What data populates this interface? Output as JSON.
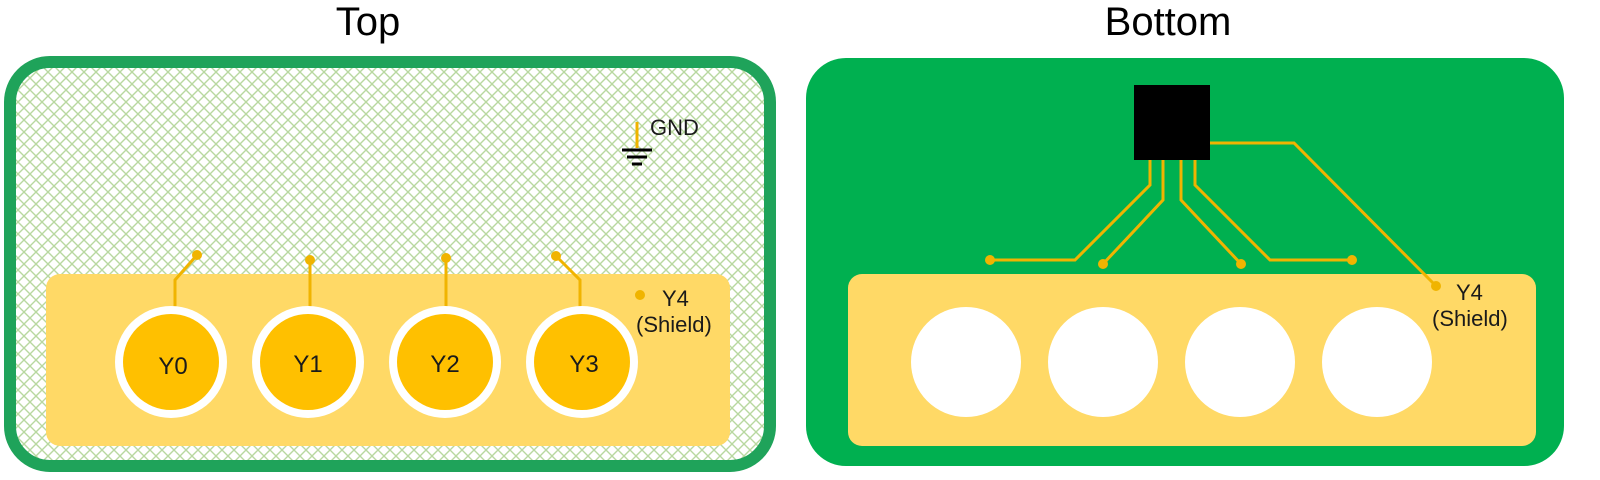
{
  "panels": {
    "top": {
      "title": "Top",
      "gnd_label": "GND",
      "shield_label_line1": "Y4",
      "shield_label_line2": "(Shield)",
      "pads": [
        {
          "label": "Y0"
        },
        {
          "label": "Y1"
        },
        {
          "label": "Y2"
        },
        {
          "label": "Y3"
        }
      ]
    },
    "bottom": {
      "title": "Bottom",
      "shield_label_line1": "Y4",
      "shield_label_line2": "(Shield)",
      "pad_count": 4
    }
  },
  "colors": {
    "board_green": "#00b050",
    "board_border_green": "#1fa35a",
    "hatch_green": "#b8d8a0",
    "shield_yellow": "#ffd966",
    "pad_orange": "#ffc000",
    "trace_orange": "#f0b400",
    "chip_black": "#000000"
  },
  "icons": {
    "ground": "ground-symbol-icon",
    "chip": "ic-chip-icon"
  }
}
